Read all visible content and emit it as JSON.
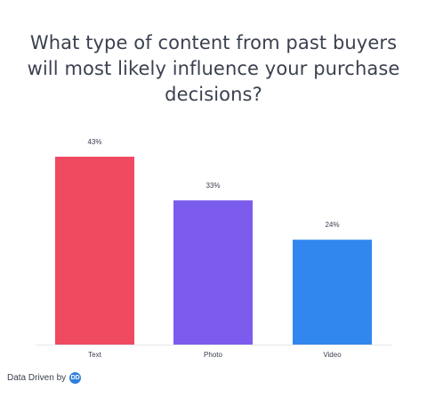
{
  "chart_data": {
    "type": "bar",
    "title": "What type of content from past buyers will most likely influence your purchase decisions?",
    "categories": [
      "Text",
      "Photo",
      "Video"
    ],
    "values": [
      43,
      33,
      24
    ],
    "value_labels": [
      "43%",
      "33%",
      "24%"
    ],
    "colors": [
      "#ef4a60",
      "#7c5ced",
      "#3187ee"
    ],
    "xlabel": "",
    "ylabel": "",
    "ylim": [
      0,
      43
    ],
    "grid": false,
    "legend": "none"
  },
  "footer": {
    "credit": "Data Driven by",
    "logo_icon": "data-driven-logo-icon",
    "logo_text": "DD"
  }
}
